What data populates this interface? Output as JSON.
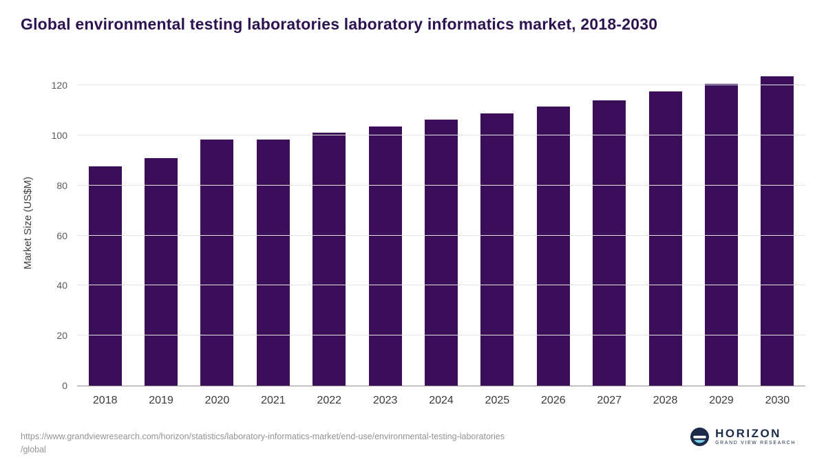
{
  "header": {
    "title": "Global environmental testing laboratories laboratory informatics market, 2018-2030"
  },
  "chart_data": {
    "type": "bar",
    "title": "Global environmental testing laboratories laboratory informatics market, 2018-2030",
    "categories": [
      "2018",
      "2019",
      "2020",
      "2021",
      "2022",
      "2023",
      "2024",
      "2025",
      "2026",
      "2027",
      "2028",
      "2029",
      "2030"
    ],
    "values": [
      87.6,
      91.0,
      98.4,
      98.4,
      101.1,
      103.6,
      106.3,
      108.8,
      111.5,
      114.0,
      117.6,
      120.6,
      123.6
    ],
    "xlabel": "",
    "ylabel": "Market Size (US$M)",
    "ylim": [
      0,
      130
    ],
    "yticks": [
      0,
      20,
      40,
      60,
      80,
      100,
      120
    ],
    "grid": "horizontal",
    "legend": "none",
    "bar_color": "#3c0d59"
  },
  "colors": {
    "bar": "#3c0d59",
    "title_text": "#2c1250",
    "gridline": "#e3e3e3",
    "axis_line": "#8e8e8e",
    "logo_navy": "#1c2b4a",
    "logo_lightblue": "#7fd1e8"
  },
  "footer": {
    "source_lines": [
      "https://www.grandviewresearch.com/horizon/statistics/laboratory-informatics-market/end-use/environmental-testing-laboratories",
      "/global"
    ],
    "logo_name": "HORIZON",
    "logo_sub": "GRAND VIEW RESEARCH"
  }
}
